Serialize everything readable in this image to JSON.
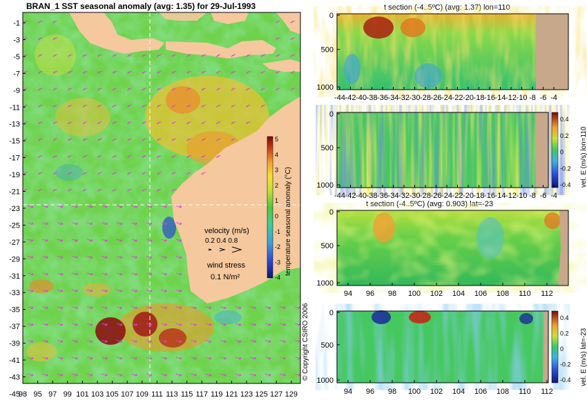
{
  "main_title": "BRAN_1 SST seasonal anomaly (avg: 1.35) for 29-Jul-1993",
  "copyright": "© Copyright CSIRO 2006",
  "map": {
    "lat_ticks": [
      "-1",
      "-3",
      "-5",
      "-7",
      "-9",
      "-11",
      "-13",
      "-15",
      "-17",
      "-19",
      "-21",
      "-23",
      "-25",
      "-27",
      "-29",
      "-31",
      "-33",
      "-35",
      "-37",
      "-39",
      "-41",
      "-43",
      "-45"
    ],
    "lon_ticks": [
      "93",
      "95",
      "97",
      "99",
      "101",
      "103",
      "105",
      "107",
      "109",
      "111",
      "113",
      "115",
      "117",
      "119",
      "121",
      "123",
      "125",
      "127",
      "129"
    ],
    "colorbar_label": "temperature seasonal anomaly (°C)",
    "colorbar_ticks": [
      "5",
      "4",
      "3",
      "2",
      "1",
      "0",
      "-1",
      "-2",
      "-3",
      "-4"
    ],
    "velocity_legend": {
      "title": "velocity (m/s)",
      "values": "0.2 0.4 0.8"
    },
    "wind_legend": {
      "title": "wind stress",
      "value": "0.1 N/m²"
    },
    "colors": {
      "land": "#f5c89e",
      "anomaly_low": "#1a1a8c",
      "anomaly_high": "#8c0a0a",
      "wind_arrow": "#e040e0"
    }
  },
  "panels": [
    {
      "title": "t section (-4..5ºC) (avg: 1.37) lon=110",
      "y_ticks": [
        "0",
        "500",
        "1000"
      ],
      "x_ticks": [
        "-44",
        "-42",
        "-40",
        "-38",
        "-36",
        "-34",
        "-32",
        "-30",
        "-28",
        "-26",
        "-24",
        "-22",
        "-20",
        "-18",
        "-16",
        "-14",
        "-12",
        "-10",
        "-8",
        "-6",
        "-4"
      ]
    },
    {
      "title": "",
      "y_ticks": [
        "0",
        "500",
        "1000"
      ],
      "colorbar_label": "vel. E (m/s) lon=110",
      "colorbar_ticks": [
        "0.4",
        "0.2",
        "0",
        "-0.2",
        "-0.4"
      ],
      "x_ticks": [
        "-44",
        "-42",
        "-40",
        "-38",
        "-36",
        "-34",
        "-32",
        "-30",
        "-28",
        "-26",
        "-24",
        "-22",
        "-20",
        "-18",
        "-16",
        "-14",
        "-12",
        "-10",
        "-8",
        "-6",
        "-4"
      ]
    },
    {
      "title": "t section (-4..5ºC) (avg: 0.903) lat=-23",
      "y_ticks": [
        "0",
        "500",
        "1000"
      ],
      "x_ticks": [
        "94",
        "96",
        "98",
        "100",
        "102",
        "104",
        "106",
        "108",
        "110",
        "112"
      ]
    },
    {
      "title": "",
      "y_ticks": [
        "0",
        "500",
        "1000"
      ],
      "colorbar_label": "vel. E (m/s) lat=-23",
      "colorbar_ticks": [
        "0.4",
        "0.2",
        "0",
        "-0.2",
        "-0.4"
      ],
      "x_ticks": [
        "94",
        "96",
        "98",
        "100",
        "102",
        "104",
        "106",
        "108",
        "110",
        "112"
      ]
    }
  ],
  "chart_data": [
    {
      "type": "heatmap",
      "title": "BRAN_1 SST seasonal anomaly (avg: 1.35) for 29-Jul-1993",
      "xlabel": "",
      "ylabel": "",
      "xlim": [
        93,
        130
      ],
      "ylim": [
        -45,
        0
      ],
      "colorbar": {
        "label": "temperature seasonal anomaly (°C)",
        "range": [
          -4,
          5
        ]
      }
    },
    {
      "type": "heatmap",
      "title": "t section (-4..5ºC) (avg: 1.37) lon=110",
      "xlim": [
        -45,
        -3
      ],
      "ylim": [
        1000,
        0
      ],
      "colorbar_range": [
        -4,
        5
      ]
    },
    {
      "type": "heatmap",
      "title": "",
      "xlim": [
        -45,
        -3
      ],
      "ylim": [
        1000,
        0
      ],
      "colorbar": {
        "label": "vel. E (m/s) lon=110",
        "range": [
          -0.4,
          0.4
        ]
      }
    },
    {
      "type": "heatmap",
      "title": "t section (-4..5ºC) (avg: 0.903) lat=-23",
      "xlim": [
        93,
        113.5
      ],
      "ylim": [
        1000,
        0
      ],
      "colorbar_range": [
        -4,
        5
      ]
    },
    {
      "type": "heatmap",
      "title": "",
      "xlim": [
        93,
        113.5
      ],
      "ylim": [
        1000,
        0
      ],
      "colorbar": {
        "label": "vel. E (m/s) lat=-23",
        "range": [
          -0.4,
          0.4
        ]
      }
    }
  ]
}
